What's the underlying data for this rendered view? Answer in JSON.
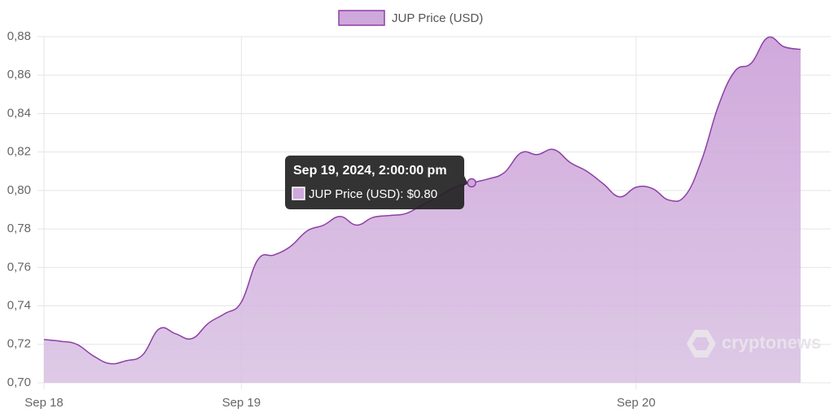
{
  "chart_data": {
    "type": "area",
    "watermark": "cryptonews",
    "x": [
      12,
      13,
      14,
      15,
      16,
      17,
      18,
      19,
      20,
      21,
      22,
      23,
      24,
      25,
      26,
      27,
      28,
      29,
      30,
      31,
      32,
      33,
      34,
      35,
      36,
      37,
      38,
      39,
      40,
      41,
      42,
      43,
      44,
      45,
      46,
      47,
      48,
      49,
      50,
      51,
      52,
      53,
      54,
      55,
      56,
      57,
      58
    ],
    "series": [
      {
        "name": "JUP Price (USD)",
        "color": "#8e3fa6",
        "values": [
          0.7225,
          0.7216,
          0.72,
          0.714,
          0.71,
          0.7115,
          0.7145,
          0.728,
          0.7255,
          0.723,
          0.731,
          0.736,
          0.742,
          0.764,
          0.7665,
          0.771,
          0.779,
          0.782,
          0.7865,
          0.782,
          0.786,
          0.787,
          0.788,
          0.7925,
          0.797,
          0.8017,
          0.804,
          0.806,
          0.8094,
          0.8196,
          0.8187,
          0.8213,
          0.8145,
          0.81,
          0.8035,
          0.7967,
          0.8017,
          0.801,
          0.795,
          0.7975,
          0.8162,
          0.844,
          0.862,
          0.8662,
          0.8795,
          0.8747,
          0.8734
        ]
      }
    ],
    "xlim": [
      12,
      58
    ],
    "xticks": [
      {
        "value": 12,
        "label": "Sep 18"
      },
      {
        "value": 24,
        "label": "Sep 19"
      },
      {
        "value": 48,
        "label": "Sep 20"
      }
    ],
    "ylim": [
      0.7,
      0.88
    ],
    "yticks": [
      {
        "value": 0.7,
        "label": "0,70"
      },
      {
        "value": 0.72,
        "label": "0,72"
      },
      {
        "value": 0.74,
        "label": "0,74"
      },
      {
        "value": 0.76,
        "label": "0,76"
      },
      {
        "value": 0.78,
        "label": "0,78"
      },
      {
        "value": 0.8,
        "label": "0,80"
      },
      {
        "value": 0.82,
        "label": "0,82"
      },
      {
        "value": 0.84,
        "label": "0,84"
      },
      {
        "value": 0.86,
        "label": "0,86"
      },
      {
        "value": 0.88,
        "label": "0,88"
      }
    ],
    "grid": true,
    "tooltip": {
      "index": 26,
      "title": "Sep 19, 2024, 2:00:00 pm",
      "label": "JUP Price (USD): $0.80"
    }
  }
}
